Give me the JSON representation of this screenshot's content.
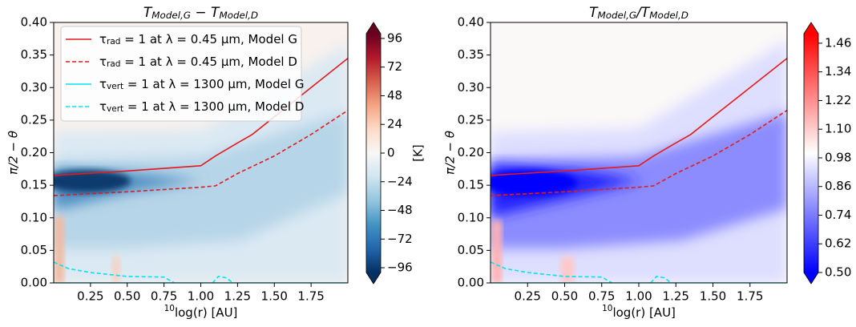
{
  "chart_data": [
    {
      "type": "contour",
      "title": [
        "T",
        "Model,G",
        " − T",
        "Model,D"
      ],
      "xlabel": [
        "10",
        "log(r) [AU]"
      ],
      "ylabel": "π/2 − θ",
      "xlim": [
        0,
        2
      ],
      "ylim": [
        0,
        0.4
      ],
      "xticks": [
        0.25,
        {
          "value": 0.5,
          "label": "0.50"
        },
        0.75,
        {
          "value": 1.0,
          "label": "1.00"
        },
        1.25,
        {
          "value": 1.5,
          "label": "1.50"
        },
        1.75
      ],
      "yticks": [
        {
          "value": 0,
          "label": "0.00"
        },
        0.05,
        {
          "value": 0.1,
          "label": "0.10"
        },
        0.15,
        {
          "value": 0.2,
          "label": "0.20"
        },
        0.25,
        {
          "value": 0.3,
          "label": "0.30"
        },
        0.35,
        {
          "value": 0.4,
          "label": "0.40"
        }
      ],
      "legend": "upper left",
      "series": [
        {
          "name": [
            "τ",
            "rad",
            " = 1 at λ = 0.45 μm, Model G"
          ],
          "color": "#e41a1c",
          "linestyle": "solid",
          "x": [
            0.0,
            0.5,
            1.0,
            1.1,
            1.25,
            1.35,
            1.5,
            1.75,
            2.0
          ],
          "values": [
            0.165,
            0.172,
            0.18,
            0.195,
            0.215,
            0.228,
            0.255,
            0.3,
            0.345
          ]
        },
        {
          "name": [
            "τ",
            "rad",
            " = 1 at λ = 0.45 μm, Model D"
          ],
          "color": "#e41a1c",
          "linestyle": "dashed",
          "x": [
            0.0,
            0.5,
            1.0,
            1.1,
            1.25,
            1.5,
            1.75,
            2.0
          ],
          "values": [
            0.134,
            0.14,
            0.147,
            0.149,
            0.168,
            0.195,
            0.228,
            0.265
          ]
        },
        {
          "name": [
            "τ",
            "vert",
            " = 1 at λ = 1300 μm, Model G"
          ],
          "color": "#00e5ee",
          "linestyle": "solid",
          "x": [
            0.0,
            1.0,
            2.0
          ],
          "values": [
            0.0,
            0.0,
            0.0
          ]
        },
        {
          "name": [
            "τ",
            "vert",
            " = 1 at λ = 1300 μm, Model D"
          ],
          "color": "#00e5ee",
          "linestyle": "dashed",
          "x": [
            0.0,
            0.1,
            0.25,
            0.5,
            0.75,
            0.82,
            1.0,
            1.08,
            1.12,
            1.17,
            1.22
          ],
          "values": [
            0.032,
            0.022,
            0.016,
            0.01,
            0.009,
            0.0,
            null,
            0.0,
            0.01,
            0.008,
            0.0
          ]
        }
      ],
      "colorbar": {
        "cmap": "RdBu_r",
        "lim": [
          -100,
          100
        ],
        "label": "[K]",
        "ticks": [
          {
            "value": -96,
            "label": "−96"
          },
          {
            "value": -72,
            "label": "−72"
          },
          {
            "value": -48,
            "label": "−48"
          },
          {
            "value": -24,
            "label": "−24"
          },
          0,
          24,
          48,
          72,
          96
        ]
      }
    },
    {
      "type": "contour",
      "title": [
        "T",
        "Model,G",
        "/T",
        "Model,D"
      ],
      "xlabel": [
        "10",
        "log(r) [AU]"
      ],
      "ylabel": "π/2 − θ",
      "xlim": [
        0,
        2
      ],
      "ylim": [
        0,
        0.4
      ],
      "xticks": [
        0.25,
        {
          "value": 0.5,
          "label": "0.50"
        },
        0.75,
        {
          "value": 1.0,
          "label": "1.00"
        },
        1.25,
        {
          "value": 1.5,
          "label": "1.50"
        },
        1.75
      ],
      "yticks": [
        {
          "value": 0,
          "label": "0.00"
        },
        0.05,
        {
          "value": 0.1,
          "label": "0.10"
        },
        0.15,
        {
          "value": 0.2,
          "label": "0.20"
        },
        0.25,
        {
          "value": 0.3,
          "label": "0.30"
        },
        0.35,
        {
          "value": 0.4,
          "label": "0.40"
        }
      ],
      "series": [
        {
          "color": "#e41a1c",
          "linestyle": "solid",
          "x": [
            0.0,
            0.5,
            1.0,
            1.1,
            1.25,
            1.35,
            1.5,
            1.75,
            2.0
          ],
          "values": [
            0.165,
            0.172,
            0.18,
            0.195,
            0.215,
            0.228,
            0.255,
            0.3,
            0.345
          ]
        },
        {
          "color": "#e41a1c",
          "linestyle": "dashed",
          "x": [
            0.0,
            0.5,
            1.0,
            1.1,
            1.25,
            1.5,
            1.75,
            2.0
          ],
          "values": [
            0.134,
            0.14,
            0.147,
            0.149,
            0.168,
            0.195,
            0.228,
            0.265
          ]
        },
        {
          "color": "#00e5ee",
          "linestyle": "solid",
          "x": [
            0.0,
            1.0,
            2.0
          ],
          "values": [
            0.0,
            0.0,
            0.0
          ]
        },
        {
          "color": "#00e5ee",
          "linestyle": "dashed",
          "x": [
            0.0,
            0.1,
            0.25,
            0.5,
            0.75,
            0.82,
            1.0,
            1.08,
            1.12,
            1.17,
            1.22
          ],
          "values": [
            0.032,
            0.022,
            0.016,
            0.01,
            0.009,
            0.0,
            null,
            0.0,
            0.01,
            0.008,
            0.0
          ]
        }
      ],
      "colorbar": {
        "cmap": "bwr",
        "lim": [
          0.5,
          1.5
        ],
        "ticks": [
          {
            "value": 0.5,
            "label": "0.50"
          },
          0.62,
          0.74,
          0.86,
          0.98,
          {
            "value": 1.1,
            "label": "1.10"
          },
          1.22,
          1.34,
          1.46
        ]
      }
    }
  ]
}
